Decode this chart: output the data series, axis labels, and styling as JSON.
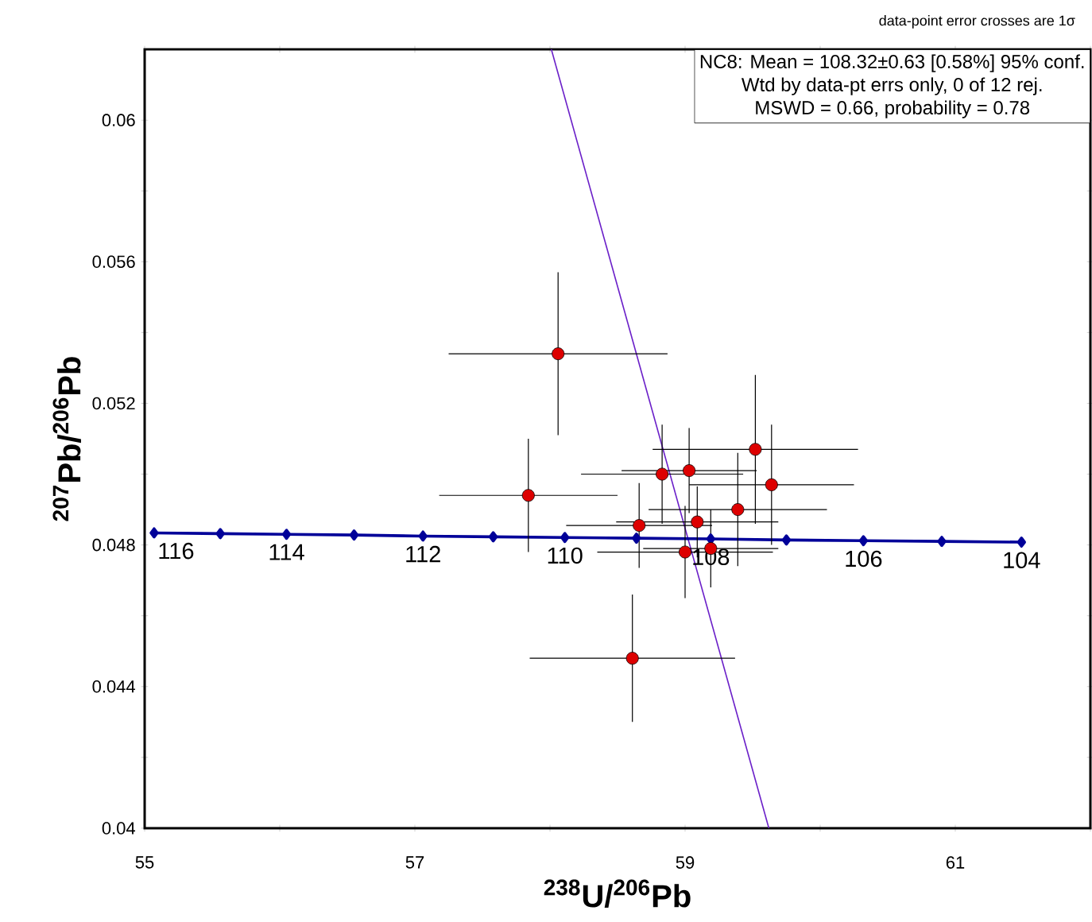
{
  "chart_data": {
    "type": "scatter",
    "xlabel": "$^{238}$U/$^{206}$Pb",
    "ylabel": "$^{207}$Pb/$^{206}$Pb",
    "xlim": [
      55,
      62
    ],
    "ylim": [
      0.04,
      0.062
    ],
    "xticks": [
      55,
      {
        "value": 56,
        "label": null
      },
      57,
      {
        "value": 58,
        "label": null
      },
      59,
      {
        "value": 60,
        "label": null
      },
      61,
      {
        "value": 62,
        "label": null
      }
    ],
    "yticks": [
      0.04,
      {
        "value": 0.042,
        "label": null
      },
      0.044,
      {
        "value": 0.046,
        "label": null
      },
      0.048,
      {
        "value": 0.05,
        "label": null
      },
      0.052,
      {
        "value": 0.054,
        "label": null
      },
      0.056,
      {
        "value": 0.058,
        "label": null
      },
      0.06
    ],
    "grid": false,
    "series": [
      {
        "type": "line",
        "color": "#6a1fc8",
        "marker": "none",
        "x": [
          58.01,
          59.62
        ],
        "values": [
          0.062,
          0.04
        ]
      },
      {
        "type": "line",
        "color": "#000099",
        "marker": "diamond",
        "x": [
          55.07,
          55.56,
          56.05,
          56.55,
          57.06,
          57.58,
          58.11,
          58.64,
          59.19,
          59.75,
          60.32,
          60.9,
          61.49
        ],
        "values": [
          0.04834,
          0.04832,
          0.0483,
          0.04828,
          0.04825,
          0.04823,
          0.04821,
          0.04819,
          0.04817,
          0.04814,
          0.04812,
          0.0481,
          0.04808
        ]
      },
      {
        "color": "#dd0000",
        "marker": "circle",
        "x": [
          58.06,
          57.84,
          58.83,
          59.03,
          59.52,
          59.64,
          59.39,
          59.09,
          58.66,
          59.0,
          59.19,
          58.61
        ],
        "values": [
          0.0534,
          0.0494,
          0.05,
          0.0501,
          0.0507,
          0.0497,
          0.049,
          0.04865,
          0.04855,
          0.0478,
          0.0479,
          0.0448
        ],
        "xerrors": [
          0.81,
          0.66,
          0.6,
          0.5,
          0.76,
          0.61,
          0.66,
          0.6,
          0.54,
          0.65,
          0.5,
          0.76
        ],
        "errors": [
          0.0023,
          0.0016,
          0.0014,
          0.0012,
          0.0021,
          0.0017,
          0.0016,
          0.001,
          0.0012,
          0.0013,
          0.0011,
          0.0018
        ]
      }
    ],
    "annotations": [
      "NC8: Mean = 108.32±0.63  [0.58%]  95% conf.",
      "Wtd by data-pt errs only, 0 of 12 rej.",
      "MSWD = 0.66, probability = 0.78",
      "data-point error crosses are 1σ",
      {
        "text": "116",
        "x": 55.07,
        "y": 0.04834
      },
      {
        "text": "114",
        "x": 56.05,
        "y": 0.0483
      },
      {
        "text": "112",
        "x": 57.06,
        "y": 0.04825
      },
      {
        "text": "110",
        "x": 58.11,
        "y": 0.04821
      },
      {
        "text": "108",
        "x": 59.19,
        "y": 0.04817
      },
      {
        "text": "106",
        "x": 60.32,
        "y": 0.04812
      },
      {
        "text": "104",
        "x": 61.49,
        "y": 0.04808
      }
    ]
  }
}
